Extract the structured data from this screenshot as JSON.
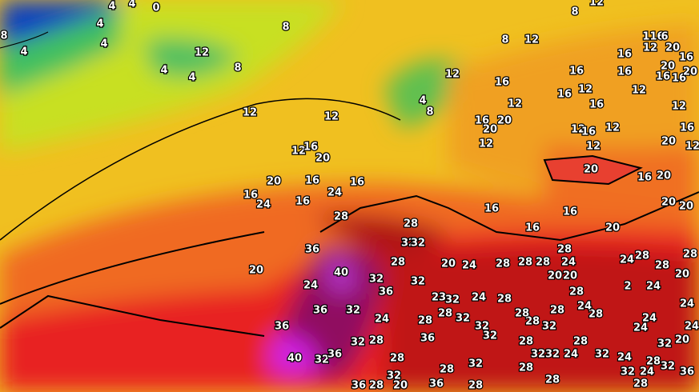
{
  "map": {
    "labels": [
      "8",
      "4",
      "4",
      "4",
      "4",
      "0",
      "4",
      "4",
      "4",
      "12",
      "8",
      "8",
      "12",
      "12",
      "12",
      "16",
      "20",
      "20",
      "16",
      "16",
      "16",
      "24",
      "16",
      "24",
      "28",
      "28",
      "36",
      "20",
      "40",
      "24",
      "32",
      "36",
      "36",
      "32",
      "36",
      "24",
      "32",
      "28",
      "28",
      "40",
      "32",
      "36",
      "36",
      "28",
      "28",
      "32",
      "32",
      "32",
      "20",
      "24",
      "28",
      "28",
      "28",
      "28",
      "24",
      "20",
      "28",
      "20",
      "8",
      "12",
      "8",
      "12",
      "12",
      "4",
      "8",
      "16",
      "12",
      "20",
      "16",
      "20",
      "12",
      "16",
      "12",
      "16",
      "16",
      "12",
      "16",
      "12",
      "12",
      "16",
      "16",
      "12",
      "116",
      "6",
      "12",
      "20",
      "16",
      "20",
      "16",
      "16",
      "20",
      "12",
      "16",
      "20",
      "12",
      "20",
      "16",
      "20",
      "20",
      "20",
      "16",
      "16",
      "16",
      "20",
      "24",
      "28",
      "28",
      "28",
      "20",
      "24",
      "2",
      "24",
      "24",
      "20",
      "32",
      "24",
      "24",
      "28",
      "24",
      "28",
      "32",
      "24",
      "32",
      "28",
      "32",
      "36",
      "24",
      "28",
      "24",
      "28",
      "32",
      "32",
      "28",
      "28",
      "28",
      "32",
      "28",
      "28",
      "28",
      "32",
      "32",
      "32",
      "23",
      "32",
      "28",
      "28",
      "32",
      "24",
      "32",
      "36",
      "36",
      "28",
      "28",
      "20"
    ]
  }
}
